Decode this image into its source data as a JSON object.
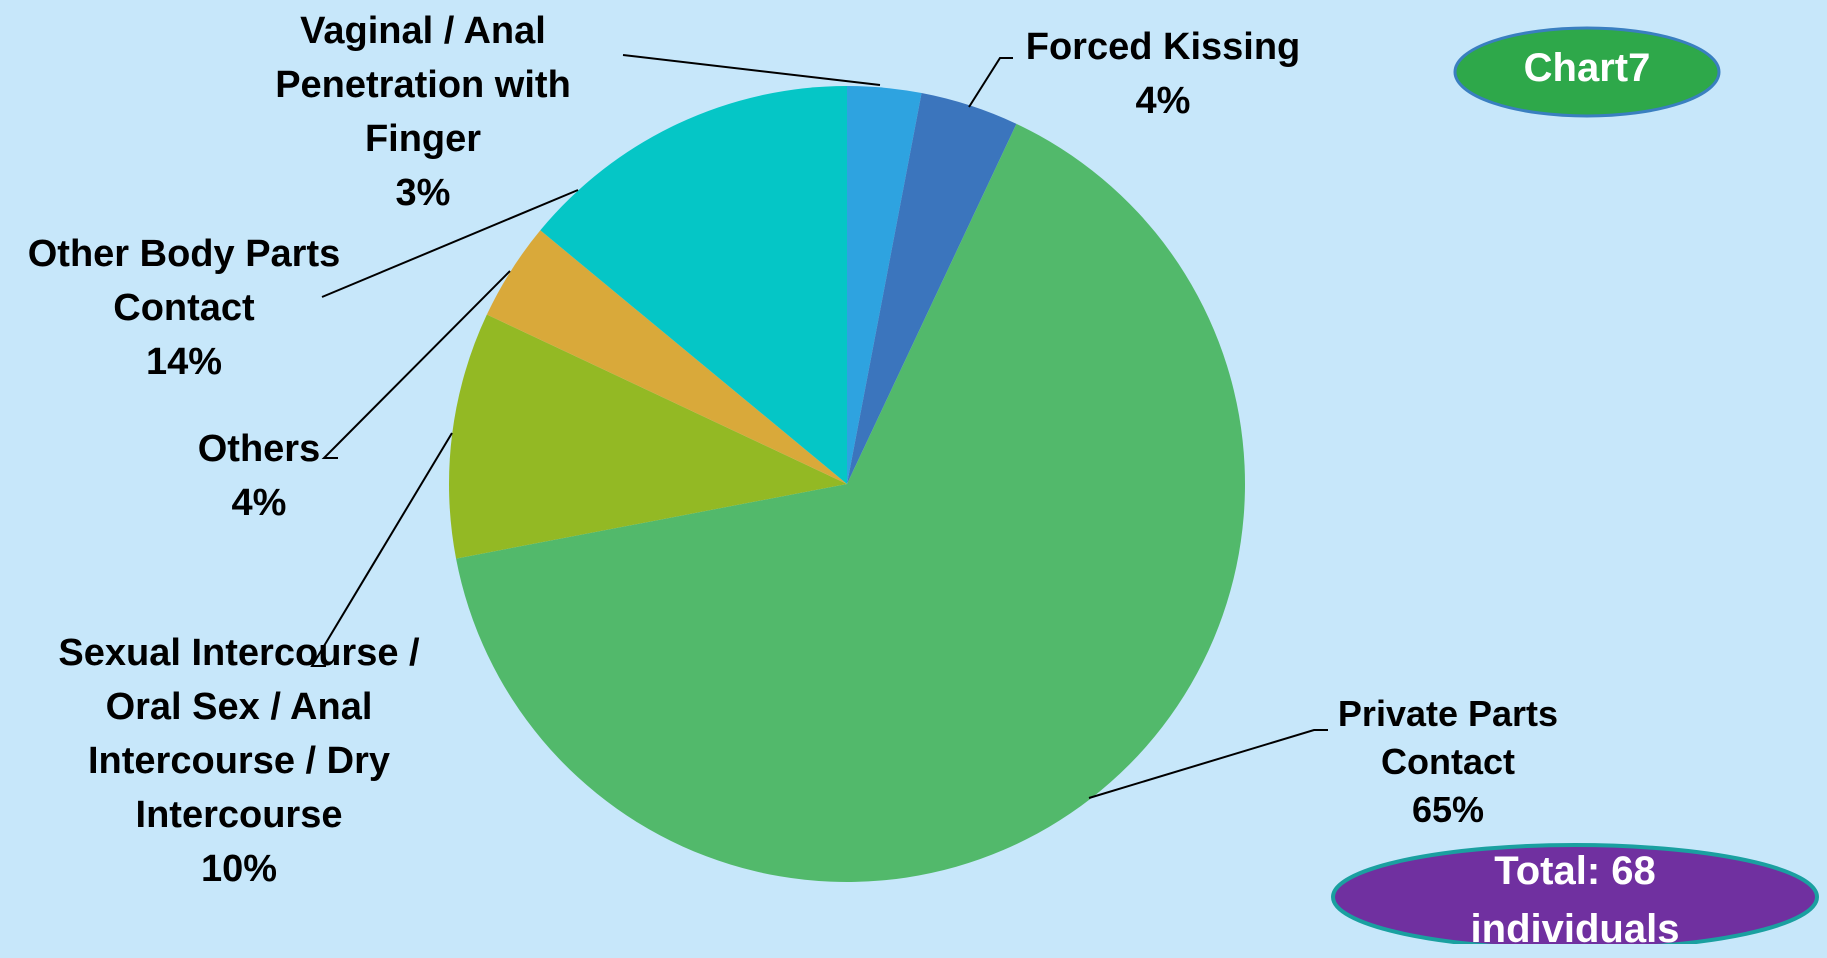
{
  "chart_data": {
    "type": "pie",
    "categories": [
      "Vaginal / Anal Penetration with Finger",
      "Forced Kissing",
      "Private Parts Contact",
      "Sexual Intercourse / Oral Sex / Anal Intercourse / Dry Intercourse",
      "Others",
      "Other Body Parts Contact"
    ],
    "values": [
      3,
      4,
      65,
      10,
      4,
      14
    ],
    "value_labels": [
      "3%",
      "4%",
      "65%",
      "10%",
      "4%",
      "14%"
    ],
    "colors": [
      "#2ea3e0",
      "#3b75bd",
      "#52b96b",
      "#93b924",
      "#d9a93a",
      "#05c6c6"
    ],
    "annotations": [
      "Chart7",
      "Total: 68 individuals"
    ]
  }
}
